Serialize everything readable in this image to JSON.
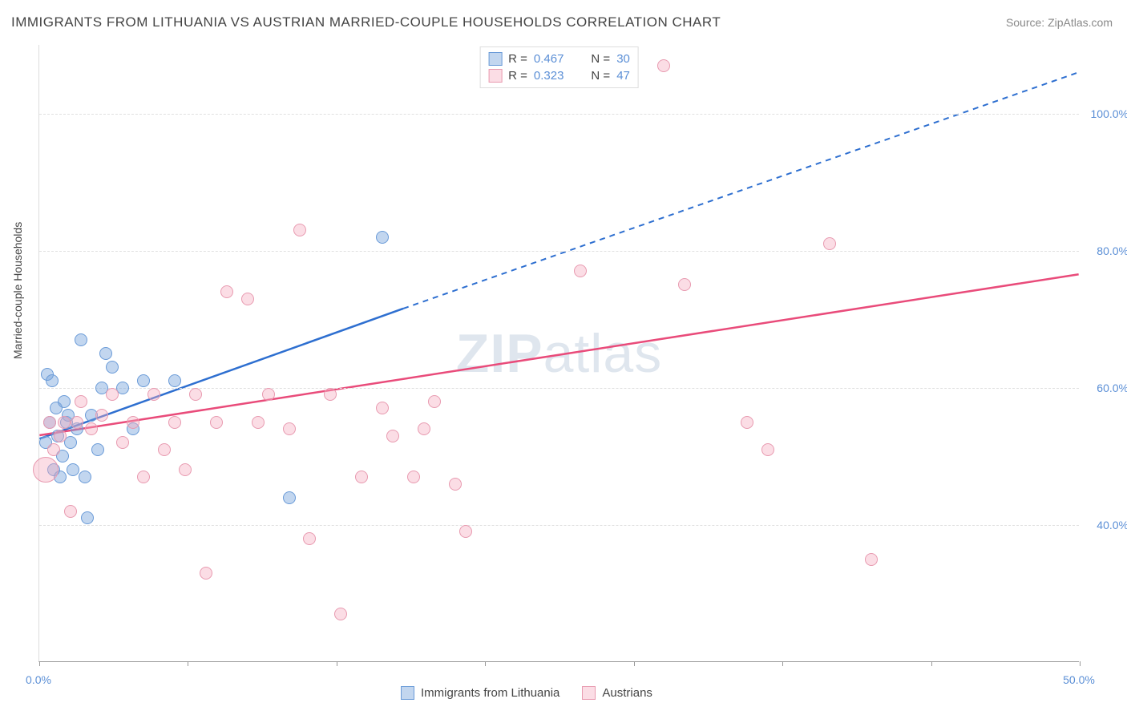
{
  "title": "IMMIGRANTS FROM LITHUANIA VS AUSTRIAN MARRIED-COUPLE HOUSEHOLDS CORRELATION CHART",
  "source": "Source: ZipAtlas.com",
  "watermark": "ZIPatlas",
  "y_axis_label": "Married-couple Households",
  "colors": {
    "blue_fill": "rgba(120,165,220,0.45)",
    "blue_stroke": "#6a9bd8",
    "blue_line": "#2e6fd0",
    "pink_fill": "rgba(245,170,190,0.40)",
    "pink_stroke": "#e89ab0",
    "pink_line": "#e94b7a",
    "axis_text": "#5b8fd6",
    "grid": "#e0e0e0",
    "border": "#999999"
  },
  "chart": {
    "type": "scatter",
    "xlim": [
      0,
      50
    ],
    "ylim": [
      20,
      110
    ],
    "y_gridlines": [
      40,
      60,
      80,
      100
    ],
    "y_tick_labels": [
      "40.0%",
      "60.0%",
      "80.0%",
      "100.0%"
    ],
    "x_ticks": [
      0,
      7.14,
      14.29,
      21.43,
      28.57,
      35.71,
      42.86,
      50
    ],
    "x_tick_labels": {
      "0": "0.0%",
      "50": "50.0%"
    },
    "series": [
      {
        "name": "Immigrants from Lithuania",
        "color_key": "blue",
        "r_value": "0.467",
        "n_value": "30",
        "trend": {
          "x1": 0,
          "y1": 52.5,
          "x2_solid": 17.5,
          "y2_solid": 71.5,
          "x2_dash": 50,
          "y2_dash": 106
        },
        "points": [
          {
            "x": 0.3,
            "y": 52,
            "r": 8
          },
          {
            "x": 0.4,
            "y": 62,
            "r": 8
          },
          {
            "x": 0.5,
            "y": 55,
            "r": 8
          },
          {
            "x": 0.6,
            "y": 61,
            "r": 8
          },
          {
            "x": 0.7,
            "y": 48,
            "r": 8
          },
          {
            "x": 0.8,
            "y": 57,
            "r": 8
          },
          {
            "x": 0.9,
            "y": 53,
            "r": 8
          },
          {
            "x": 1.0,
            "y": 47,
            "r": 8
          },
          {
            "x": 1.1,
            "y": 50,
            "r": 8
          },
          {
            "x": 1.2,
            "y": 58,
            "r": 8
          },
          {
            "x": 1.3,
            "y": 55,
            "r": 8
          },
          {
            "x": 1.4,
            "y": 56,
            "r": 8
          },
          {
            "x": 1.5,
            "y": 52,
            "r": 8
          },
          {
            "x": 1.6,
            "y": 48,
            "r": 8
          },
          {
            "x": 1.8,
            "y": 54,
            "r": 8
          },
          {
            "x": 2.0,
            "y": 67,
            "r": 8
          },
          {
            "x": 2.2,
            "y": 47,
            "r": 8
          },
          {
            "x": 2.3,
            "y": 41,
            "r": 8
          },
          {
            "x": 2.5,
            "y": 56,
            "r": 8
          },
          {
            "x": 2.8,
            "y": 51,
            "r": 8
          },
          {
            "x": 3.0,
            "y": 60,
            "r": 8
          },
          {
            "x": 3.2,
            "y": 65,
            "r": 8
          },
          {
            "x": 3.5,
            "y": 63,
            "r": 8
          },
          {
            "x": 4.0,
            "y": 60,
            "r": 8
          },
          {
            "x": 4.5,
            "y": 54,
            "r": 8
          },
          {
            "x": 5.0,
            "y": 61,
            "r": 8
          },
          {
            "x": 6.5,
            "y": 61,
            "r": 8
          },
          {
            "x": 12.0,
            "y": 44,
            "r": 8
          },
          {
            "x": 16.5,
            "y": 82,
            "r": 8
          }
        ]
      },
      {
        "name": "Austrians",
        "color_key": "pink",
        "r_value": "0.323",
        "n_value": "47",
        "trend": {
          "x1": 0,
          "y1": 53,
          "x2_solid": 50,
          "y2_solid": 76.5,
          "x2_dash": 50,
          "y2_dash": 76.5
        },
        "points": [
          {
            "x": 0.3,
            "y": 48,
            "r": 16
          },
          {
            "x": 0.5,
            "y": 55,
            "r": 8
          },
          {
            "x": 0.7,
            "y": 51,
            "r": 8
          },
          {
            "x": 1.0,
            "y": 53,
            "r": 8
          },
          {
            "x": 1.2,
            "y": 55,
            "r": 8
          },
          {
            "x": 1.5,
            "y": 42,
            "r": 8
          },
          {
            "x": 1.8,
            "y": 55,
            "r": 8
          },
          {
            "x": 2.0,
            "y": 58,
            "r": 8
          },
          {
            "x": 2.5,
            "y": 54,
            "r": 8
          },
          {
            "x": 3.0,
            "y": 56,
            "r": 8
          },
          {
            "x": 3.5,
            "y": 59,
            "r": 8
          },
          {
            "x": 4.0,
            "y": 52,
            "r": 8
          },
          {
            "x": 4.5,
            "y": 55,
            "r": 8
          },
          {
            "x": 5.0,
            "y": 47,
            "r": 8
          },
          {
            "x": 5.5,
            "y": 59,
            "r": 8
          },
          {
            "x": 6.0,
            "y": 51,
            "r": 8
          },
          {
            "x": 6.5,
            "y": 55,
            "r": 8
          },
          {
            "x": 7.0,
            "y": 48,
            "r": 8
          },
          {
            "x": 7.5,
            "y": 59,
            "r": 8
          },
          {
            "x": 8.0,
            "y": 33,
            "r": 8
          },
          {
            "x": 8.5,
            "y": 55,
            "r": 8
          },
          {
            "x": 9.0,
            "y": 74,
            "r": 8
          },
          {
            "x": 10.0,
            "y": 73,
            "r": 8
          },
          {
            "x": 10.5,
            "y": 55,
            "r": 8
          },
          {
            "x": 11.0,
            "y": 59,
            "r": 8
          },
          {
            "x": 12.0,
            "y": 54,
            "r": 8
          },
          {
            "x": 12.5,
            "y": 83,
            "r": 8
          },
          {
            "x": 13.0,
            "y": 38,
            "r": 8
          },
          {
            "x": 14.0,
            "y": 59,
            "r": 8
          },
          {
            "x": 14.5,
            "y": 27,
            "r": 8
          },
          {
            "x": 15.5,
            "y": 47,
            "r": 8
          },
          {
            "x": 16.5,
            "y": 57,
            "r": 8
          },
          {
            "x": 17.0,
            "y": 53,
            "r": 8
          },
          {
            "x": 18.0,
            "y": 47,
            "r": 8
          },
          {
            "x": 18.5,
            "y": 54,
            "r": 8
          },
          {
            "x": 19.0,
            "y": 58,
            "r": 8
          },
          {
            "x": 20.0,
            "y": 46,
            "r": 8
          },
          {
            "x": 20.5,
            "y": 39,
            "r": 8
          },
          {
            "x": 26.0,
            "y": 77,
            "r": 8
          },
          {
            "x": 30.0,
            "y": 107,
            "r": 8
          },
          {
            "x": 31.0,
            "y": 75,
            "r": 8
          },
          {
            "x": 34.0,
            "y": 55,
            "r": 8
          },
          {
            "x": 35.0,
            "y": 51,
            "r": 8
          },
          {
            "x": 38.0,
            "y": 81,
            "r": 8
          },
          {
            "x": 40.0,
            "y": 35,
            "r": 8
          }
        ]
      }
    ]
  },
  "bottom_legend": [
    {
      "label": "Immigrants from Lithuania",
      "color_key": "blue"
    },
    {
      "label": "Austrians",
      "color_key": "pink"
    }
  ]
}
